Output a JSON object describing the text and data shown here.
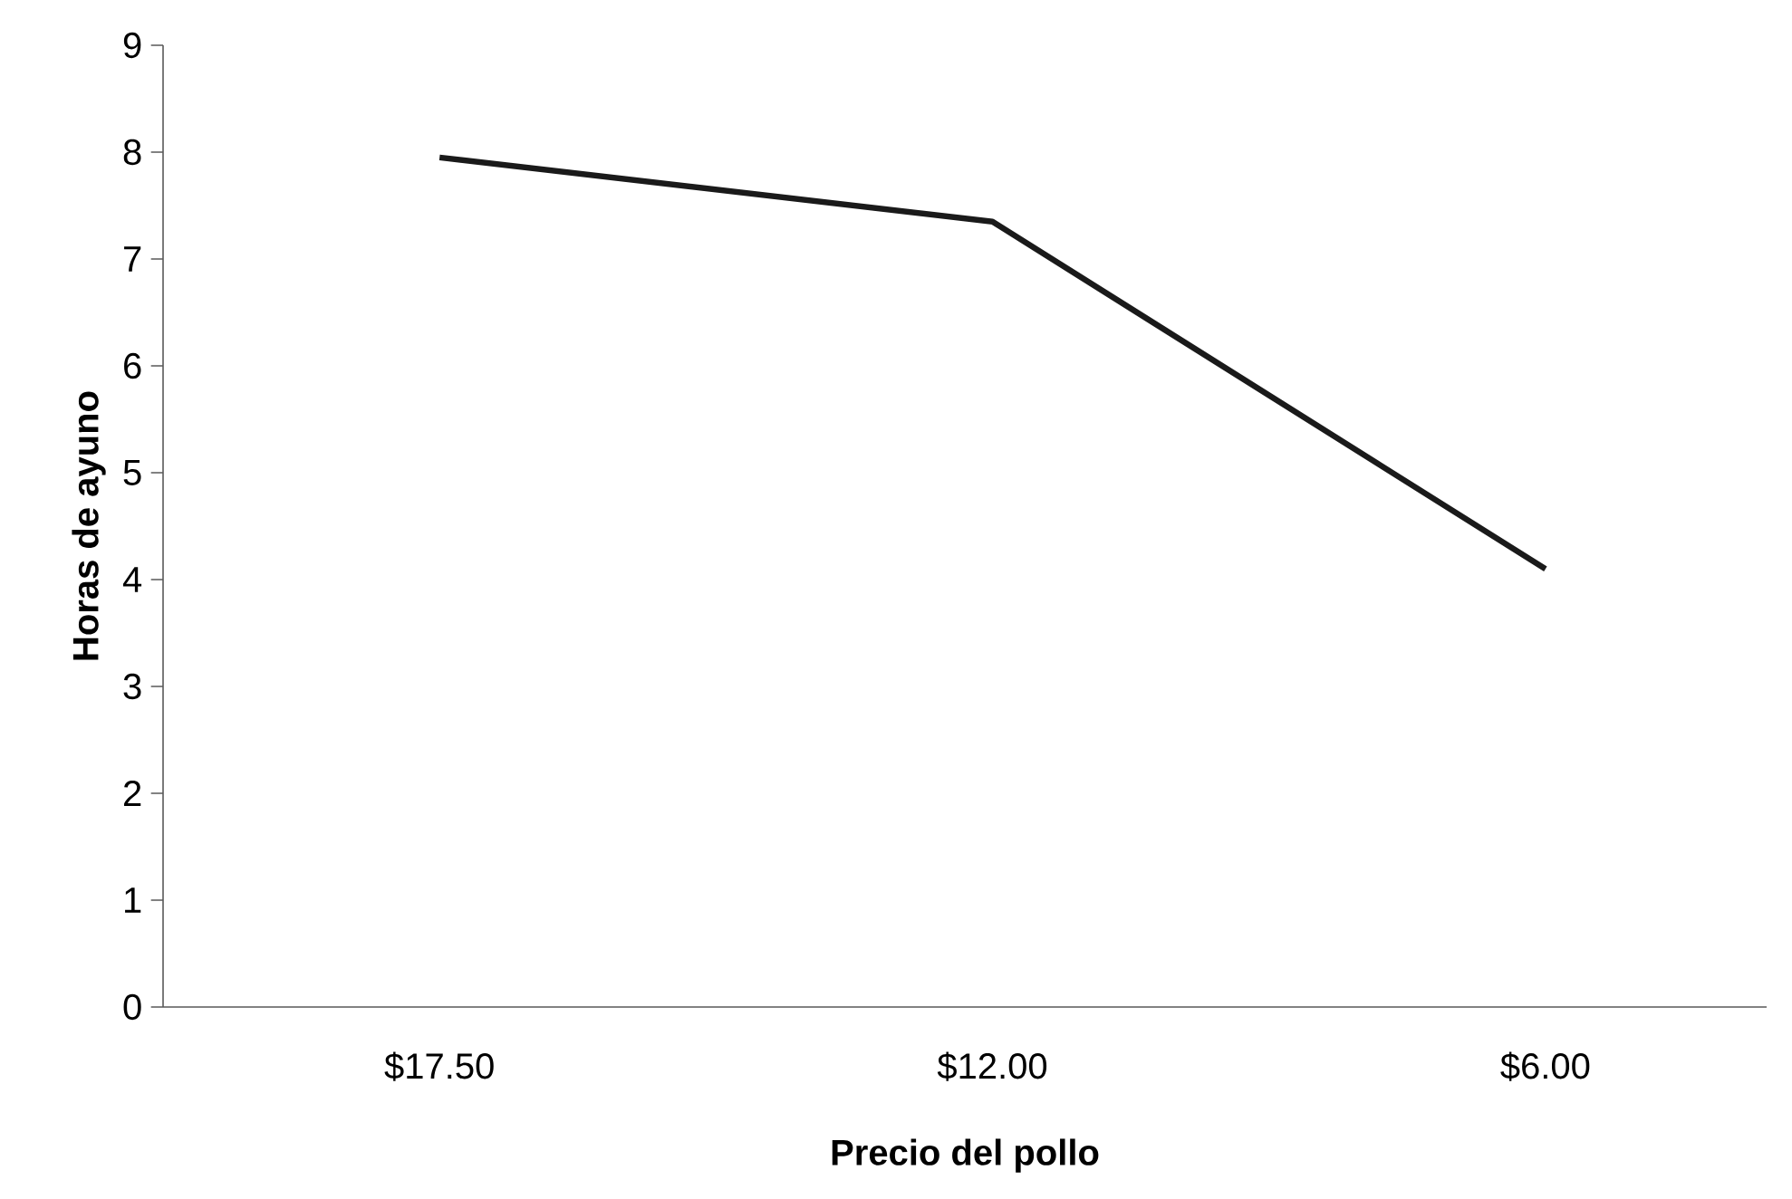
{
  "chart_data": {
    "type": "line",
    "xlabel": "Precio del pollo",
    "ylabel": "Horas de ayuno",
    "categories": [
      "$17.50",
      "$12.00",
      "$6.00"
    ],
    "values": [
      7.95,
      7.35,
      4.1
    ],
    "color": "#1a1a1a",
    "ylim": [
      0,
      9
    ],
    "yticks": [
      0,
      1,
      2,
      3,
      4,
      5,
      6,
      7,
      8,
      9
    ]
  }
}
